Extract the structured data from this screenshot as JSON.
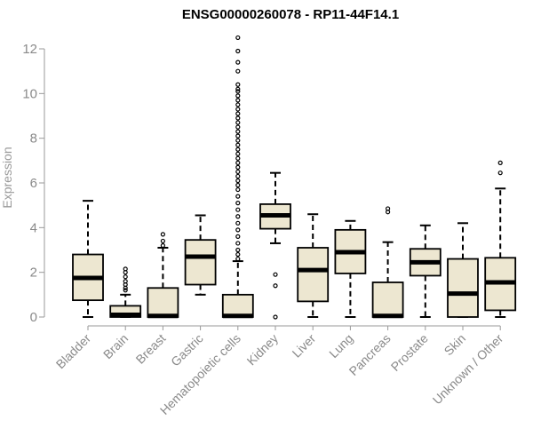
{
  "chart_data": {
    "type": "boxplot",
    "title": "ENSG00000260078 - RP11-44F14.1",
    "ylabel": "Expression",
    "xlabel": "",
    "ylim": [
      0,
      12.5
    ],
    "yticks": [
      0,
      2,
      4,
      6,
      8,
      10,
      12
    ],
    "box_fill": "#ede7d1",
    "median_color": "#000000",
    "categories": [
      "Bladder",
      "Brain",
      "Breast",
      "Gastric",
      "Hematopoietic cells",
      "Kidney",
      "Liver",
      "Lung",
      "Pancreas",
      "Prostate",
      "Skin",
      "Unknown / Other"
    ],
    "boxes": [
      {
        "name": "Bladder",
        "whisker_low": 0.0,
        "q1": 0.75,
        "median": 1.75,
        "q3": 2.8,
        "whisker_high": 5.2,
        "outliers": []
      },
      {
        "name": "Brain",
        "whisker_low": 0.0,
        "q1": 0.0,
        "median": 0.1,
        "q3": 0.5,
        "whisker_high": 1.0,
        "outliers": [
          1.2,
          1.3,
          1.45,
          1.6,
          1.8,
          2.0,
          2.15
        ]
      },
      {
        "name": "Breast",
        "whisker_low": 0.0,
        "q1": 0.0,
        "median": 0.05,
        "q3": 1.3,
        "whisker_high": 3.1,
        "outliers": [
          3.2,
          3.4,
          3.7
        ]
      },
      {
        "name": "Gastric",
        "whisker_low": 1.0,
        "q1": 1.45,
        "median": 2.7,
        "q3": 3.45,
        "whisker_high": 4.55,
        "outliers": []
      },
      {
        "name": "Hematopoietic cells",
        "whisker_low": 0.0,
        "q1": 0.0,
        "median": 0.05,
        "q3": 1.0,
        "whisker_high": 2.5,
        "outliers": [
          2.6,
          2.8,
          3.0,
          3.3,
          3.6,
          3.9,
          4.2,
          4.5,
          4.8,
          5.1,
          5.4,
          5.7,
          5.9,
          6.1,
          6.3,
          6.5,
          6.7,
          6.9,
          7.1,
          7.3,
          7.5,
          7.7,
          7.9,
          8.1,
          8.3,
          8.5,
          8.7,
          8.9,
          9.1,
          9.3,
          9.5,
          9.7,
          9.9,
          10.1,
          10.2,
          10.4,
          11.0,
          11.4,
          11.9,
          12.5
        ]
      },
      {
        "name": "Kidney",
        "whisker_low": 3.3,
        "q1": 3.95,
        "median": 4.55,
        "q3": 5.05,
        "whisker_high": 6.45,
        "outliers": [
          0.0,
          1.4,
          1.9
        ]
      },
      {
        "name": "Liver",
        "whisker_low": 0.0,
        "q1": 0.7,
        "median": 2.1,
        "q3": 3.1,
        "whisker_high": 4.6,
        "outliers": []
      },
      {
        "name": "Lung",
        "whisker_low": 0.0,
        "q1": 1.95,
        "median": 2.9,
        "q3": 3.9,
        "whisker_high": 4.3,
        "outliers": []
      },
      {
        "name": "Pancreas",
        "whisker_low": 0.0,
        "q1": 0.0,
        "median": 0.05,
        "q3": 1.55,
        "whisker_high": 3.35,
        "outliers": [
          4.7,
          4.85
        ]
      },
      {
        "name": "Prostate",
        "whisker_low": 0.0,
        "q1": 1.85,
        "median": 2.45,
        "q3": 3.05,
        "whisker_high": 4.1,
        "outliers": []
      },
      {
        "name": "Skin",
        "whisker_low": 0.0,
        "q1": 0.0,
        "median": 1.05,
        "q3": 2.6,
        "whisker_high": 4.2,
        "outliers": []
      },
      {
        "name": "Unknown / Other",
        "whisker_low": 0.0,
        "q1": 0.3,
        "median": 1.55,
        "q3": 2.65,
        "whisker_high": 5.75,
        "outliers": [
          6.45,
          6.9
        ]
      }
    ]
  }
}
